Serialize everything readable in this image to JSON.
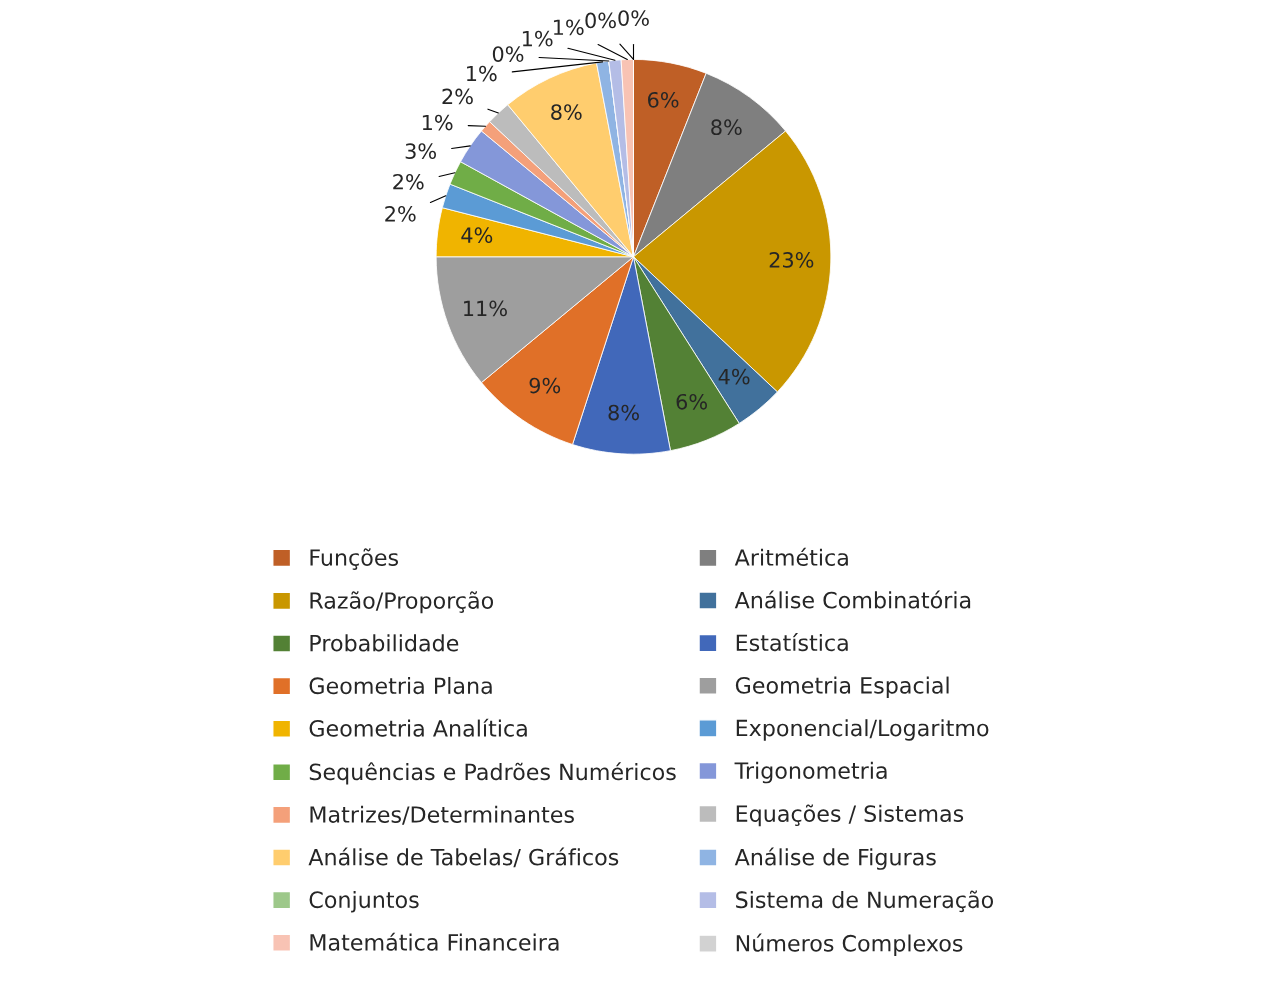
{
  "chart_data": {
    "type": "pie",
    "categories": [
      "Funções",
      "Aritmética",
      "Razão/Proporção",
      "Análise Combinatória",
      "Probabilidade",
      "Estatística",
      "Geometria Plana",
      "Geometria Espacial",
      "Geometria Analítica",
      "Exponencial/Logaritmo",
      "Sequências e Padrões Numéricos",
      "Trigonometria",
      "Matrizes/Determinantes",
      "Equações / Sistemas",
      "Análise de Tabelas/ Gráficos",
      "Análise de Figuras",
      "Conjuntos",
      "Sistema de Numeração",
      "Matemática Financeira",
      "Números Complexos",
      null
    ],
    "values": [
      6,
      8,
      23,
      4,
      6,
      8,
      9,
      11,
      4,
      2,
      2,
      3,
      1,
      2,
      8,
      1,
      0,
      1,
      1,
      0,
      0
    ],
    "colors": [
      "#bf5f26",
      "#7f7f7f",
      "#c99700",
      "#41719c",
      "#538135",
      "#4168ba",
      "#e07028",
      "#9e9e9e",
      "#f0b400",
      "#5b9bd5",
      "#70ad47",
      "#8497d9",
      "#f4a07a",
      "#bcbcbc",
      "#ffcd6e",
      "#8fb4e3",
      "#9dc88a",
      "#b4bde6",
      "#f8c3b4",
      "#d2d2d2",
      "#e8e8e8"
    ],
    "value_labels": [
      "6%",
      "8%",
      "23%",
      "4%",
      "6%",
      "8%",
      "9%",
      "11%",
      "4%",
      "2%",
      "2%",
      "3%",
      "1%",
      "2%",
      "8%",
      "1%",
      "0%",
      "1%",
      "1%",
      "0%",
      "0%"
    ],
    "legend": "bottom"
  }
}
